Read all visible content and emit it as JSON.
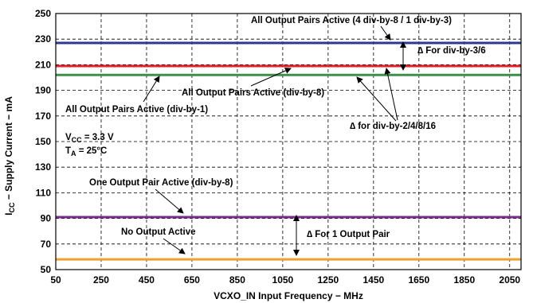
{
  "chart_data": {
    "type": "line",
    "xlabel": "VCXO_IN Input Frequency − MHz",
    "ylabel": "I",
    "ylabel_sub": "CC",
    "ylabel_rest": " − Supply Current − mA",
    "xlim": [
      50,
      2100
    ],
    "ylim": [
      50,
      250
    ],
    "xticks": [
      50,
      250,
      450,
      650,
      850,
      1050,
      1250,
      1450,
      1650,
      1850,
      2050
    ],
    "yticks": [
      50,
      70,
      90,
      110,
      130,
      150,
      170,
      190,
      210,
      230,
      250
    ],
    "grid": true,
    "series": [
      {
        "name": "All Output Pairs Active (4 div-by-8 / 1 div-by-3)",
        "color": "#2b3a8f",
        "x": [
          50,
          2100
        ],
        "y": [
          227,
          227
        ]
      },
      {
        "name": "All Output Pairs Active (div-by-1)",
        "color": "#e0202a",
        "x": [
          50,
          2100
        ],
        "y": [
          209,
          209
        ]
      },
      {
        "name": "All Output Pairs Active (div-by-8)",
        "color": "#3f8f4a",
        "x": [
          50,
          2100
        ],
        "y": [
          202,
          202
        ]
      },
      {
        "name": "One Output Pair Active (div-by-8)",
        "color": "#7a2d8c",
        "x": [
          50,
          2100
        ],
        "y": [
          91,
          91
        ]
      },
      {
        "name": "No Output Active",
        "color": "#f0a030",
        "x": [
          50,
          2100
        ],
        "y": [
          58,
          58
        ]
      }
    ],
    "conditions": {
      "vcc_main": "V",
      "vcc_sub": "CC",
      "vcc_rest": " = 3.3 V",
      "ta_main": "T",
      "ta_sub": "A",
      "ta_rest": " = 25°C"
    },
    "delta_labels": {
      "div3_6": "∆ For div-by-3/6",
      "div2_16": "∆ for div-by-2/4/8/16",
      "one_pair": "∆ For 1 Output Pair"
    }
  }
}
